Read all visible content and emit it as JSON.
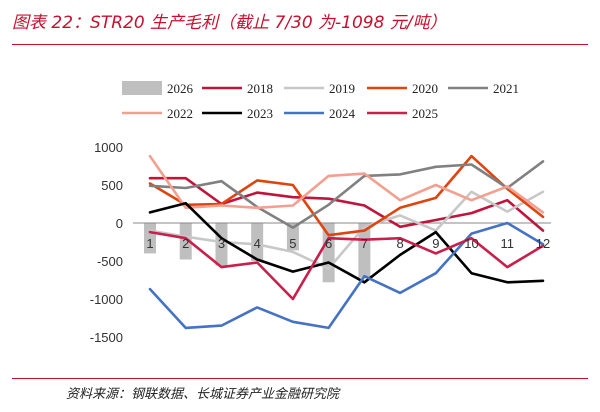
{
  "header": {
    "title": "图表 22：STR20 生产毛利（截止 7/30 为-1098 元/吨）"
  },
  "footer": {
    "source": "资料来源：钢联数据、长城证券产业金融研究院"
  },
  "chart_data": {
    "type": "line",
    "x": [
      1,
      2,
      3,
      4,
      5,
      6,
      7,
      8,
      9,
      10,
      11,
      12
    ],
    "xtick_labels": [
      "1",
      "2",
      "3",
      "4",
      "5",
      "6",
      "7",
      "8",
      "9",
      "10",
      "11",
      "12"
    ],
    "ylim": [
      -1500,
      1000
    ],
    "yticks": [
      1000,
      500,
      0,
      -500,
      -1000,
      -1500
    ],
    "grid": false,
    "legend_position": "top",
    "series": [
      {
        "name": "2026",
        "kind": "bar",
        "color": "#bfbfbf",
        "values": [
          -400,
          -480,
          -560,
          -500,
          -360,
          -780,
          -720,
          null,
          null,
          null,
          null,
          null
        ]
      },
      {
        "name": "2018",
        "kind": "line",
        "color": "#c0143c",
        "values": [
          590,
          590,
          250,
          400,
          340,
          320,
          230,
          -50,
          40,
          130,
          300,
          -100
        ]
      },
      {
        "name": "2019",
        "kind": "line",
        "color": "#c8c8c8",
        "values": [
          -100,
          -180,
          -250,
          -280,
          -380,
          -600,
          -50,
          100,
          -100,
          410,
          150,
          410
        ]
      },
      {
        "name": "2020",
        "kind": "line",
        "color": "#e0440e",
        "values": [
          520,
          240,
          250,
          560,
          500,
          -160,
          -100,
          200,
          330,
          880,
          450,
          80
        ]
      },
      {
        "name": "2021",
        "kind": "line",
        "color": "#808080",
        "values": [
          490,
          460,
          550,
          210,
          -60,
          240,
          620,
          640,
          740,
          770,
          460,
          810
        ]
      },
      {
        "name": "2022",
        "kind": "line",
        "color": "#f4a090",
        "values": [
          880,
          200,
          230,
          200,
          230,
          620,
          650,
          300,
          500,
          300,
          480,
          140
        ]
      },
      {
        "name": "2023",
        "kind": "line",
        "color": "#000000",
        "values": [
          140,
          260,
          -200,
          -480,
          -640,
          -520,
          -780,
          -420,
          -120,
          -660,
          -780,
          -760
        ]
      },
      {
        "name": "2024",
        "kind": "line",
        "color": "#4472c4",
        "values": [
          -870,
          -1380,
          -1350,
          -1110,
          -1300,
          -1380,
          -700,
          -920,
          -660,
          -140,
          0,
          -280
        ]
      },
      {
        "name": "2025",
        "kind": "line",
        "color": "#c8204a",
        "values": [
          -120,
          -200,
          -580,
          -520,
          -1000,
          -200,
          -220,
          -200,
          -400,
          -200,
          -580,
          -300
        ]
      }
    ]
  }
}
